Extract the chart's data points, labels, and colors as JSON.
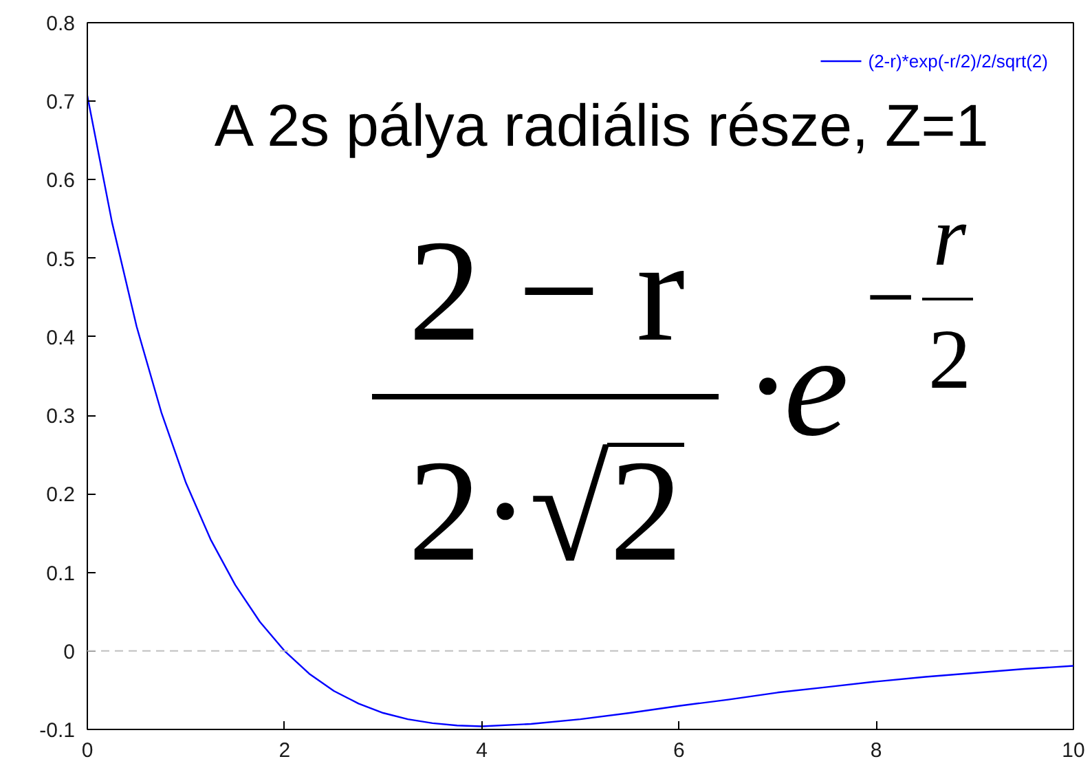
{
  "chart_data": {
    "type": "line",
    "title": "A 2s pálya radiális része, Z=1",
    "annotations": [
      "2 − r",
      "2·√2",
      "·e",
      "−",
      "r",
      "2"
    ],
    "x": [
      0,
      0.25,
      0.5,
      0.75,
      1,
      1.25,
      1.5,
      1.75,
      2,
      2.25,
      2.5,
      2.75,
      3,
      3.25,
      3.5,
      3.75,
      4,
      4.5,
      5,
      5.5,
      6,
      6.5,
      7,
      7.5,
      8,
      8.5,
      9,
      9.5,
      10
    ],
    "series": [
      {
        "name": "(2-r)*exp(-r/2)/2/sqrt(2)",
        "color": "#0000ff",
        "values": [
          0.707,
          0.546,
          0.413,
          0.304,
          0.214,
          0.142,
          0.084,
          0.037,
          0,
          -0.029,
          -0.051,
          -0.067,
          -0.079,
          -0.087,
          -0.092,
          -0.095,
          -0.096,
          -0.093,
          -0.087,
          -0.079,
          -0.07,
          -0.062,
          -0.053,
          -0.046,
          -0.039,
          -0.033,
          -0.028,
          -0.023,
          -0.019
        ]
      }
    ],
    "xlim": [
      0,
      10
    ],
    "ylim": [
      -0.1,
      0.8
    ],
    "xticks": [
      0,
      2,
      4,
      6,
      8,
      10
    ],
    "yticks": [
      -0.1,
      0,
      0.1,
      0.2,
      0.3,
      0.4,
      0.5,
      0.6,
      0.7,
      0.8
    ],
    "ref_lines": [
      {
        "axis": "y",
        "value": 0,
        "color": "#c0c0c0",
        "line_style": "dashed"
      }
    ],
    "grid": false,
    "legend": "top right"
  }
}
